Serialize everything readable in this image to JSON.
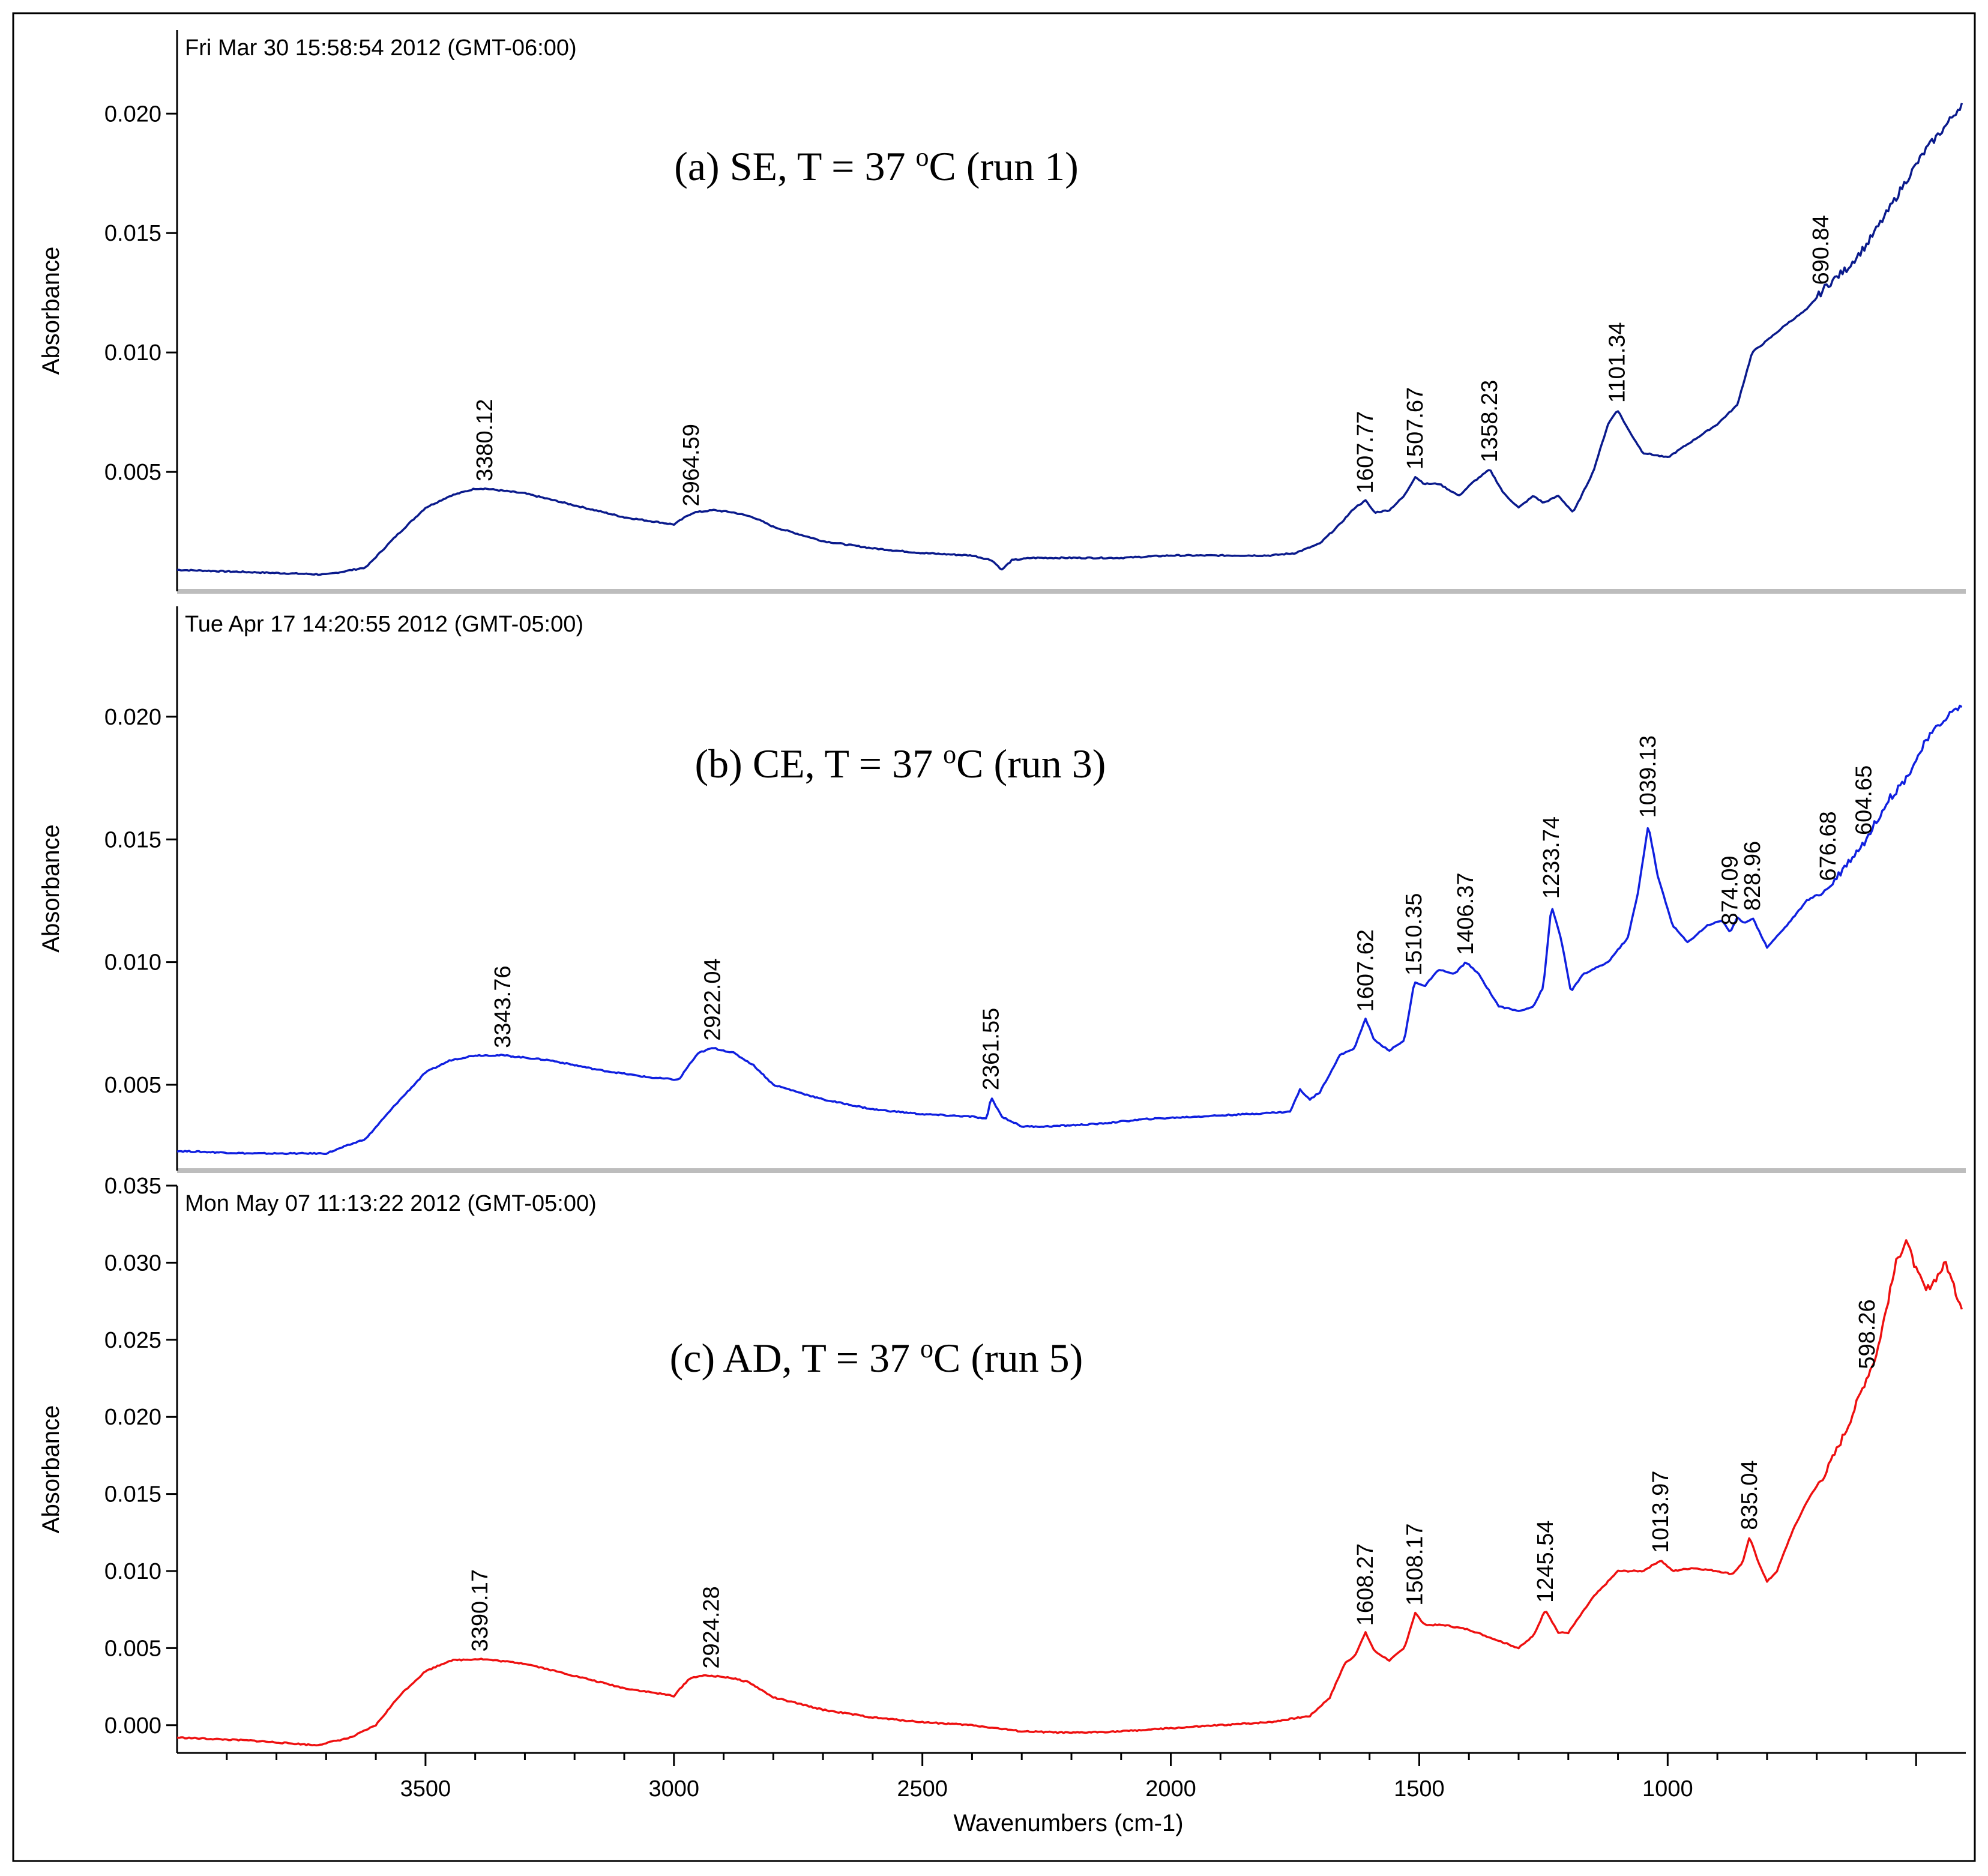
{
  "chart_data": {
    "type": "line",
    "xlabel": "Wavenumbers (cm-1)",
    "xlim": [
      4000,
      400
    ],
    "xticks": [
      3500,
      3000,
      2500,
      2000,
      1500,
      1000
    ],
    "panels": [
      {
        "id": "a",
        "timestamp": "Fri Mar 30 15:58:54 2012 (GMT-06:00)",
        "title_pre": "(a)  SE,  T = 37 ",
        "title_sup": "o",
        "title_post": "C  (run 1)",
        "ylabel": "Absorbance",
        "ylim": [
          0.0,
          0.0235
        ],
        "yticks": [
          "0.005",
          "0.010",
          "0.015",
          "0.020"
        ],
        "color": "#0a1a8c",
        "series": {
          "name": "SE run 1",
          "x": [
            4000,
            3850,
            3700,
            3620,
            3560,
            3500,
            3450,
            3400,
            3380,
            3300,
            3200,
            3100,
            3000,
            2970,
            2960,
            2920,
            2880,
            2840,
            2800,
            2700,
            2600,
            2500,
            2400,
            2360,
            2340,
            2320,
            2280,
            2200,
            2100,
            2000,
            1900,
            1800,
            1750,
            1700,
            1660,
            1630,
            1608,
            1590,
            1560,
            1530,
            1508,
            1490,
            1460,
            1420,
            1390,
            1358,
            1330,
            1300,
            1270,
            1250,
            1220,
            1190,
            1150,
            1120,
            1101,
            1080,
            1050,
            1000,
            950,
            900,
            860,
            830,
            800,
            760,
            720,
            680,
            640,
            600,
            560,
            520,
            480,
            440,
            405
          ],
          "y": [
            0.0009,
            0.0008,
            0.0007,
            0.001,
            0.0023,
            0.0035,
            0.004,
            0.0043,
            0.0043,
            0.0041,
            0.0036,
            0.0031,
            0.0028,
            0.0032,
            0.0033,
            0.0034,
            0.0033,
            0.0031,
            0.0027,
            0.0021,
            0.0018,
            0.0016,
            0.0015,
            0.0013,
            0.0009,
            0.0013,
            0.0014,
            0.0014,
            0.0014,
            0.0015,
            0.0015,
            0.0015,
            0.0016,
            0.002,
            0.0028,
            0.0035,
            0.0038,
            0.0033,
            0.0034,
            0.004,
            0.0048,
            0.0045,
            0.0045,
            0.004,
            0.0046,
            0.0051,
            0.0041,
            0.0035,
            0.004,
            0.0037,
            0.004,
            0.0033,
            0.005,
            0.007,
            0.0076,
            0.0068,
            0.0058,
            0.0056,
            0.0063,
            0.007,
            0.0078,
            0.01,
            0.0105,
            0.0112,
            0.0118,
            0.0128,
            0.0135,
            0.0145,
            0.0158,
            0.0172,
            0.0185,
            0.0195,
            0.0205
          ]
        },
        "peaks": [
          {
            "x": 3380.12,
            "label": "3380.12"
          },
          {
            "x": 2964.59,
            "label": "2964.59"
          },
          {
            "x": 1607.77,
            "label": "1607.77"
          },
          {
            "x": 1507.67,
            "label": "1507.67"
          },
          {
            "x": 1358.23,
            "label": "1358.23"
          },
          {
            "x": 1101.34,
            "label": "1101.34"
          },
          {
            "x": 690.84,
            "label": "690.84"
          }
        ]
      },
      {
        "id": "b",
        "timestamp": "Tue Apr 17 14:20:55 2012 (GMT-05:00)",
        "title_pre": "(b)  CE,  T = 37 ",
        "title_sup": "o",
        "title_post": "C  (run 3)",
        "ylabel": "Absorbance",
        "ylim": [
          0.0015,
          0.0245
        ],
        "yticks": [
          "0.005",
          "0.010",
          "0.015",
          "0.020"
        ],
        "color": "#1020e0",
        "series": {
          "name": "CE run 3",
          "x": [
            4000,
            3850,
            3700,
            3620,
            3560,
            3500,
            3450,
            3400,
            3344,
            3250,
            3150,
            3050,
            2990,
            2970,
            2950,
            2922,
            2880,
            2840,
            2800,
            2700,
            2600,
            2500,
            2400,
            2370,
            2362,
            2340,
            2300,
            2250,
            2150,
            2050,
            1950,
            1850,
            1760,
            1740,
            1720,
            1700,
            1660,
            1630,
            1608,
            1590,
            1560,
            1530,
            1510,
            1490,
            1460,
            1430,
            1406,
            1380,
            1340,
            1300,
            1270,
            1250,
            1234,
            1215,
            1195,
            1170,
            1120,
            1080,
            1060,
            1039,
            1020,
            990,
            960,
            920,
            890,
            874,
            860,
            845,
            829,
            800,
            760,
            720,
            677,
            640,
            600,
            560,
            520,
            480,
            440,
            405
          ],
          "y": [
            0.0023,
            0.0022,
            0.0022,
            0.0028,
            0.0042,
            0.0055,
            0.006,
            0.0062,
            0.0062,
            0.006,
            0.0056,
            0.0053,
            0.0052,
            0.0058,
            0.0063,
            0.0065,
            0.0063,
            0.0058,
            0.005,
            0.0044,
            0.004,
            0.0038,
            0.0037,
            0.0036,
            0.0045,
            0.0037,
            0.0033,
            0.0033,
            0.0034,
            0.0036,
            0.0037,
            0.0038,
            0.0039,
            0.0048,
            0.0044,
            0.0047,
            0.0062,
            0.0065,
            0.0077,
            0.0068,
            0.0064,
            0.0068,
            0.0092,
            0.009,
            0.0097,
            0.0095,
            0.01,
            0.0095,
            0.0082,
            0.008,
            0.0082,
            0.009,
            0.0123,
            0.011,
            0.0088,
            0.0095,
            0.01,
            0.011,
            0.0128,
            0.0156,
            0.0135,
            0.0115,
            0.0108,
            0.0115,
            0.0117,
            0.0112,
            0.0118,
            0.0116,
            0.0118,
            0.0106,
            0.0115,
            0.0125,
            0.013,
            0.014,
            0.015,
            0.0165,
            0.0175,
            0.019,
            0.02,
            0.0205
          ]
        },
        "peaks": [
          {
            "x": 3343.76,
            "label": "3343.76"
          },
          {
            "x": 2922.04,
            "label": "2922.04"
          },
          {
            "x": 2361.55,
            "label": "2361.55"
          },
          {
            "x": 1607.62,
            "label": "1607.62"
          },
          {
            "x": 1510.35,
            "label": "1510.35"
          },
          {
            "x": 1406.37,
            "label": "1406.37"
          },
          {
            "x": 1233.74,
            "label": "1233.74"
          },
          {
            "x": 1039.13,
            "label": "1039.13"
          },
          {
            "x": 874.09,
            "label": "874.09"
          },
          {
            "x": 828.96,
            "label": "828.96"
          },
          {
            "x": 676.68,
            "label": "676.68"
          },
          {
            "x": 604.65,
            "label": "604.65"
          }
        ]
      },
      {
        "id": "c",
        "timestamp": "Mon May 07 11:13:22 2012 (GMT-05:00)",
        "title_pre": "(c)  AD, T = 37 ",
        "title_sup": "o",
        "title_post": "C  (run 5)",
        "ylabel": "Absorbance",
        "ylim": [
          -0.0018,
          0.035
        ],
        "yticks": [
          "0.000",
          "0.005",
          "0.010",
          "0.015",
          "0.020",
          "0.025",
          "0.030",
          "0.035"
        ],
        "color": "#ee1010",
        "series": {
          "name": "AD run 5",
          "x": [
            4000,
            3850,
            3720,
            3650,
            3600,
            3550,
            3500,
            3450,
            3390,
            3300,
            3200,
            3100,
            3000,
            2970,
            2950,
            2924,
            2890,
            2850,
            2800,
            2700,
            2600,
            2500,
            2400,
            2350,
            2300,
            2200,
            2100,
            2000,
            1900,
            1800,
            1720,
            1680,
            1650,
            1630,
            1608,
            1590,
            1560,
            1530,
            1508,
            1490,
            1450,
            1400,
            1350,
            1300,
            1270,
            1246,
            1220,
            1200,
            1150,
            1100,
            1050,
            1014,
            990,
            950,
            900,
            870,
            850,
            835,
            820,
            800,
            780,
            750,
            720,
            680,
            640,
            600,
            580,
            560,
            540,
            520,
            500,
            480,
            460,
            440,
            420,
            405
          ],
          "y": [
            -0.0008,
            -0.001,
            -0.0013,
            -0.0008,
            0.0,
            0.002,
            0.0035,
            0.0042,
            0.0043,
            0.004,
            0.0032,
            0.0024,
            0.0019,
            0.003,
            0.0032,
            0.0032,
            0.0031,
            0.0028,
            0.0018,
            0.001,
            0.0005,
            0.0002,
            0.0,
            -0.0002,
            -0.0004,
            -0.0005,
            -0.0004,
            -0.0002,
            0.0,
            0.0002,
            0.0006,
            0.0018,
            0.004,
            0.0045,
            0.006,
            0.0048,
            0.0042,
            0.005,
            0.0073,
            0.0065,
            0.0065,
            0.0062,
            0.0056,
            0.005,
            0.0058,
            0.0075,
            0.006,
            0.006,
            0.0083,
            0.01,
            0.01,
            0.0107,
            0.01,
            0.0102,
            0.01,
            0.0098,
            0.0105,
            0.0122,
            0.0108,
            0.0093,
            0.01,
            0.0125,
            0.0145,
            0.0165,
            0.0192,
            0.0225,
            0.024,
            0.027,
            0.03,
            0.0315,
            0.0295,
            0.0282,
            0.029,
            0.03,
            0.028,
            0.027
          ]
        },
        "peaks": [
          {
            "x": 3390.17,
            "label": "3390.17"
          },
          {
            "x": 2924.28,
            "label": "2924.28"
          },
          {
            "x": 1608.27,
            "label": "1608.27"
          },
          {
            "x": 1508.17,
            "label": "1508.17"
          },
          {
            "x": 1245.54,
            "label": "1245.54"
          },
          {
            "x": 1013.97,
            "label": "1013.97"
          },
          {
            "x": 835.04,
            "label": "835.04"
          },
          {
            "x": 598.26,
            "label": "598.26"
          }
        ]
      }
    ]
  }
}
